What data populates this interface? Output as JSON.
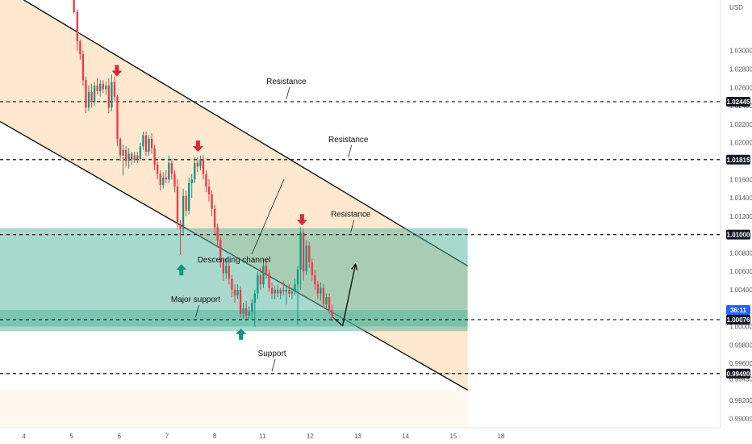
{
  "chart_data": {
    "type": "candlestick",
    "currency": "USD",
    "ylim": [
      0.989,
      1.0355
    ],
    "xlim": [
      3.5,
      18.6
    ],
    "y_ticks": [
      "1.03000",
      "1.02800",
      "1.02600",
      "1.02400",
      "1.02200",
      "1.02000",
      "1.01600",
      "1.01400",
      "1.01200",
      "1.00800",
      "1.00600",
      "1.00400",
      "1.00000",
      "0.99800",
      "0.99600",
      "0.99430",
      "0.99200",
      "0.99000"
    ],
    "x_ticks": [
      "4",
      "5",
      "6",
      "7",
      "8",
      "11",
      "12",
      "13",
      "14",
      "15",
      "18"
    ],
    "x_tick_positions": [
      4,
      5,
      6,
      7,
      8,
      9,
      10,
      11,
      12,
      13,
      14
    ],
    "levels": [
      {
        "type": "resistance",
        "price": 1.02445,
        "label": "1.02445",
        "note": "Resistance",
        "note_x": 5.5
      },
      {
        "type": "resistance",
        "price": 1.01815,
        "label": "1.01815",
        "note": "Resistance",
        "note_x": 6.8
      },
      {
        "type": "support",
        "price": 0.9949,
        "label": "0.99490",
        "note": "Support",
        "note_x": 5.2
      }
    ],
    "zones": [
      {
        "type": "resistance",
        "low": 0.9995,
        "high": 1.0107,
        "label": "1.01000",
        "note": "Resistance",
        "note_x": 6.85,
        "level": 1.01
      },
      {
        "type": "support",
        "low": 1.0,
        "high": 1.0018,
        "label": "1.00076",
        "note": "Major support",
        "note_x": 3.6,
        "level": 1.00076
      }
    ],
    "current_price_badge": "36:11",
    "channel": {
      "name": "Descending channel",
      "upper": [
        [
          4.0,
          1.0355
        ],
        [
          13.3,
          1.0066
        ]
      ],
      "lower": [
        [
          3.5,
          1.0223
        ],
        [
          13.3,
          0.9931
        ]
      ]
    },
    "candles": [
      [
        5.05,
        1.0356,
        1.037,
        1.034,
        1.0342
      ],
      [
        5.12,
        1.0342,
        1.0345,
        1.03,
        1.031
      ],
      [
        5.18,
        1.031,
        1.0312,
        1.029,
        1.0296
      ],
      [
        5.24,
        1.0296,
        1.03,
        1.0262,
        1.0268
      ],
      [
        5.3,
        1.0268,
        1.0272,
        1.0232,
        1.0238
      ],
      [
        5.36,
        1.0238,
        1.0262,
        1.0234,
        1.0255
      ],
      [
        5.42,
        1.0255,
        1.0264,
        1.0238,
        1.0244
      ],
      [
        5.48,
        1.0244,
        1.0266,
        1.024,
        1.0262
      ],
      [
        5.54,
        1.0262,
        1.027,
        1.0252,
        1.0256
      ],
      [
        5.6,
        1.0256,
        1.0268,
        1.025,
        1.0264
      ],
      [
        5.66,
        1.0264,
        1.0268,
        1.0254,
        1.0258
      ],
      [
        5.72,
        1.0258,
        1.0266,
        1.0252,
        1.0262
      ],
      [
        5.78,
        1.0262,
        1.027,
        1.0232,
        1.0238
      ],
      [
        5.84,
        1.0238,
        1.0274,
        1.0234,
        1.0266
      ],
      [
        5.9,
        1.0266,
        1.0272,
        1.0244,
        1.025
      ],
      [
        5.96,
        1.025,
        1.0252,
        1.0196,
        1.0204
      ],
      [
        6.02,
        1.0204,
        1.0206,
        1.018,
        1.0186
      ],
      [
        6.08,
        1.0186,
        1.0198,
        1.0164,
        1.0192
      ],
      [
        6.14,
        1.0192,
        1.0196,
        1.0174,
        1.018
      ],
      [
        6.2,
        1.018,
        1.0194,
        1.0172,
        1.0188
      ],
      [
        6.26,
        1.0188,
        1.019,
        1.0176,
        1.0181
      ],
      [
        6.32,
        1.0181,
        1.019,
        1.0178,
        1.0186
      ],
      [
        6.38,
        1.0186,
        1.019,
        1.0178,
        1.0182
      ],
      [
        6.44,
        1.0182,
        1.02,
        1.018,
        1.0196
      ],
      [
        6.5,
        1.0196,
        1.0212,
        1.0192,
        1.0208
      ],
      [
        6.56,
        1.0208,
        1.0212,
        1.0186,
        1.019
      ],
      [
        6.62,
        1.019,
        1.0208,
        1.0186,
        1.0204
      ],
      [
        6.68,
        1.0204,
        1.021,
        1.0188,
        1.0194
      ],
      [
        6.74,
        1.0194,
        1.0198,
        1.017,
        1.0176
      ],
      [
        6.8,
        1.0176,
        1.018,
        1.016,
        1.0166
      ],
      [
        6.86,
        1.0166,
        1.017,
        1.0148,
        1.0154
      ],
      [
        6.92,
        1.0154,
        1.0168,
        1.015,
        1.0162
      ],
      [
        6.98,
        1.0162,
        1.017,
        1.0156,
        1.016
      ],
      [
        7.04,
        1.016,
        1.0186,
        1.0156,
        1.0178
      ],
      [
        7.1,
        1.0178,
        1.0182,
        1.016,
        1.0166
      ],
      [
        7.16,
        1.0166,
        1.017,
        1.0146,
        1.0152
      ],
      [
        7.22,
        1.0152,
        1.016,
        1.0106,
        1.0112
      ],
      [
        7.28,
        1.0112,
        1.0116,
        1.0078,
        1.0106
      ],
      [
        7.34,
        1.0106,
        1.015,
        1.01,
        1.0142
      ],
      [
        7.4,
        1.0142,
        1.0148,
        1.012,
        1.0126
      ],
      [
        7.46,
        1.0126,
        1.0162,
        1.0122,
        1.0156
      ],
      [
        7.52,
        1.0156,
        1.0166,
        1.014,
        1.016
      ],
      [
        7.58,
        1.016,
        1.0184,
        1.0156,
        1.0178
      ],
      [
        7.64,
        1.0178,
        1.0184,
        1.0168,
        1.0174
      ],
      [
        7.7,
        1.0174,
        1.0186,
        1.017,
        1.0182
      ],
      [
        7.76,
        1.0182,
        1.0186,
        1.016,
        1.0166
      ],
      [
        7.82,
        1.0166,
        1.017,
        1.0146,
        1.0152
      ],
      [
        7.88,
        1.0152,
        1.016,
        1.0136,
        1.0144
      ],
      [
        7.94,
        1.0144,
        1.0148,
        1.012,
        1.0128
      ],
      [
        8.0,
        1.0128,
        1.0132,
        1.01,
        1.0108
      ],
      [
        8.06,
        1.0108,
        1.0112,
        1.0086,
        1.0094
      ],
      [
        8.12,
        1.0094,
        1.0098,
        1.0064,
        1.007
      ],
      [
        8.18,
        1.007,
        1.0074,
        1.005,
        1.0058
      ],
      [
        8.24,
        1.0058,
        1.0074,
        1.0052,
        1.0066
      ],
      [
        8.3,
        1.0066,
        1.007,
        1.0046,
        1.0052
      ],
      [
        8.36,
        1.0052,
        1.0056,
        1.0032,
        1.004
      ],
      [
        8.42,
        1.004,
        1.0046,
        1.0026,
        1.0034
      ],
      [
        8.48,
        1.0034,
        1.0046,
        1.003,
        1.004
      ],
      [
        8.54,
        1.004,
        1.0044,
        1.001,
        1.0014
      ],
      [
        8.6,
        1.0014,
        1.0026,
        1.0008,
        1.002
      ],
      [
        8.66,
        1.002,
        1.0028,
        1.0008,
        1.0012
      ],
      [
        8.72,
        1.0012,
        1.0022,
        1.0008,
        1.0016
      ],
      [
        8.78,
        1.0016,
        1.003,
        1.0008,
        1.0026
      ],
      [
        8.84,
        1.0026,
        1.004,
        1.0,
        1.0036
      ],
      [
        8.9,
        1.0036,
        1.006,
        1.003,
        1.0056
      ],
      [
        8.96,
        1.0056,
        1.0064,
        1.004,
        1.0046
      ],
      [
        9.02,
        1.0046,
        1.0072,
        1.0042,
        1.0066
      ],
      [
        9.08,
        1.0066,
        1.0072,
        1.0052,
        1.0058
      ],
      [
        9.14,
        1.0058,
        1.0062,
        1.0038,
        1.0042
      ],
      [
        9.2,
        1.0042,
        1.0048,
        1.003,
        1.0036
      ],
      [
        9.26,
        1.0036,
        1.0044,
        1.003,
        1.004
      ],
      [
        9.32,
        1.004,
        1.0046,
        1.0032,
        1.0036
      ],
      [
        9.38,
        1.0036,
        1.0042,
        1.003,
        1.004
      ],
      [
        9.44,
        1.004,
        1.005,
        1.0034,
        1.0038
      ],
      [
        9.5,
        1.0038,
        1.0044,
        1.0024,
        1.004
      ],
      [
        9.56,
        1.004,
        1.0046,
        1.0032,
        1.0036
      ],
      [
        9.62,
        1.0036,
        1.0042,
        1.003,
        1.0038
      ],
      [
        9.68,
        1.0038,
        1.0052,
        1.0034,
        1.0046
      ],
      [
        9.74,
        1.0046,
        1.0066,
        1.0002,
        1.0062
      ],
      [
        9.8,
        1.0062,
        1.0108,
        1.004,
        1.0102
      ],
      [
        9.86,
        1.0102,
        1.0106,
        1.005,
        1.006
      ],
      [
        9.92,
        1.006,
        1.0094,
        1.0056,
        1.0088
      ],
      [
        9.98,
        1.0088,
        1.0092,
        1.0064,
        1.007
      ],
      [
        10.04,
        1.007,
        1.0074,
        1.005,
        1.0056
      ],
      [
        10.1,
        1.0056,
        1.0062,
        1.004,
        1.0046
      ],
      [
        10.16,
        1.0046,
        1.005,
        1.003,
        1.0036
      ],
      [
        10.22,
        1.0036,
        1.0048,
        1.0028,
        1.0042
      ],
      [
        10.28,
        1.0042,
        1.0046,
        1.002,
        1.0024
      ],
      [
        10.34,
        1.0024,
        1.0036,
        1.0018,
        1.0032
      ],
      [
        10.4,
        1.0032,
        1.0036,
        1.0014,
        1.0018
      ],
      [
        10.46,
        1.0018,
        1.0024,
        1.0006,
        1.001
      ]
    ]
  },
  "annotations": {
    "channel_label": "Descending channel",
    "down_arrows": [
      [
        5.95,
        1.0272
      ],
      [
        7.65,
        1.019
      ],
      [
        9.83,
        1.011
      ]
    ],
    "up_arrows": [
      [
        7.3,
        1.0068
      ],
      [
        8.55,
        0.9998
      ]
    ],
    "projection": [
      [
        10.48,
        1.001
      ],
      [
        10.68,
        1.0001
      ],
      [
        10.95,
        1.0068
      ]
    ]
  },
  "colors": {
    "bull": "#089981",
    "bear": "#f23645",
    "zone_fill": "#4fb39a",
    "channel_fill": "#fde2c0",
    "channel_line": "#111111",
    "level_line": "#111111",
    "arrow_red": "#d62839",
    "arrow_green": "#12967c",
    "badge_blue": "#2962ff"
  }
}
